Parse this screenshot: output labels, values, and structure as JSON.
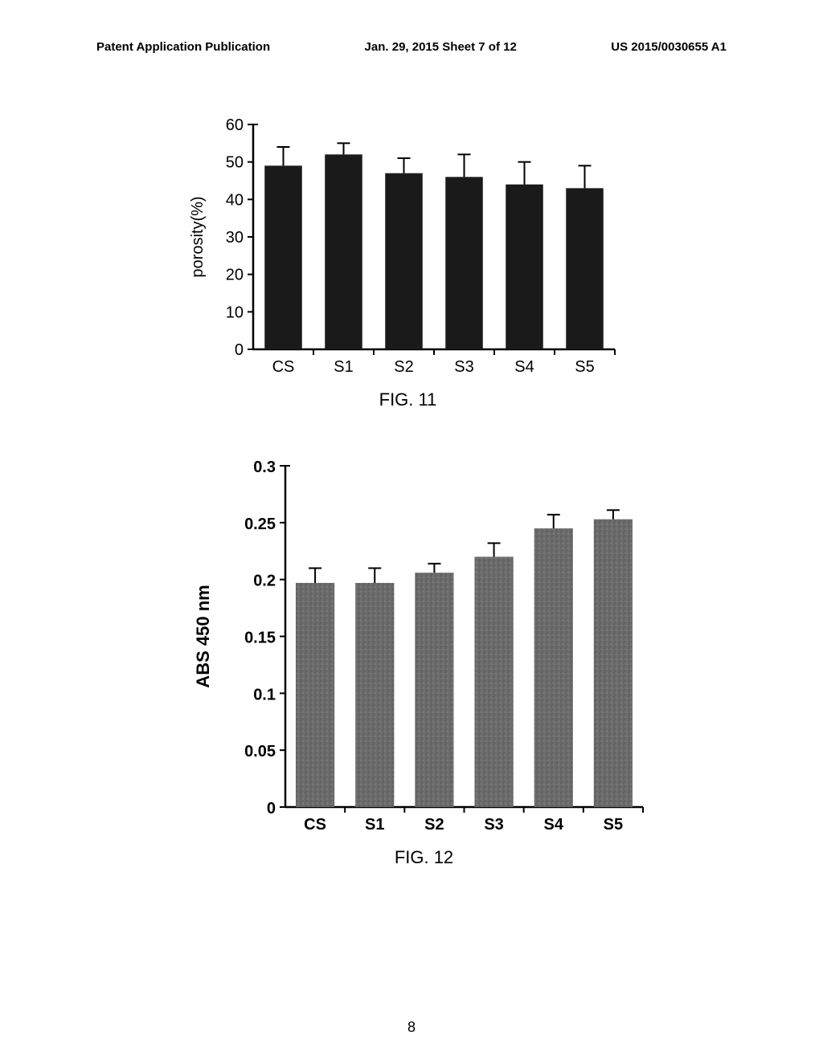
{
  "header": {
    "left": "Patent Application Publication",
    "center": "Jan. 29, 2015  Sheet 7 of 12",
    "right": "US 2015/0030655 A1"
  },
  "chart1": {
    "type": "bar",
    "ylabel": "porosity(%)",
    "label_fontsize": 20,
    "tick_fontsize": 20,
    "ylim": [
      0,
      60
    ],
    "ytick_step": 10,
    "categories": [
      "CS",
      "S1",
      "S2",
      "S3",
      "S4",
      "S5"
    ],
    "values": [
      49,
      52,
      47,
      46,
      44,
      43
    ],
    "errors": [
      5,
      3,
      4,
      6,
      6,
      6
    ],
    "bar_color": "#1a1a1a",
    "bar_width": 0.62,
    "error_color": "#000000",
    "axis_color": "#000000",
    "background_color": "#ffffff",
    "fig_label": "FIG. 11"
  },
  "chart2": {
    "type": "bar",
    "ylabel": "ABS 450 nm",
    "label_fontsize": 22,
    "label_fontweight": "bold",
    "tick_fontsize": 20,
    "tick_fontweight": "bold",
    "ylim": [
      0,
      0.3
    ],
    "ytick_step": 0.05,
    "categories": [
      "CS",
      "S1",
      "S2",
      "S3",
      "S4",
      "S5"
    ],
    "values": [
      0.197,
      0.197,
      0.206,
      0.22,
      0.245,
      0.253
    ],
    "errors": [
      0.013,
      0.013,
      0.008,
      0.012,
      0.012,
      0.008
    ],
    "bar_color": "#6b6b6b",
    "bar_width": 0.65,
    "error_color": "#000000",
    "axis_color": "#000000",
    "background_color": "#ffffff",
    "fig_label": "FIG. 12"
  },
  "page_number": "8"
}
